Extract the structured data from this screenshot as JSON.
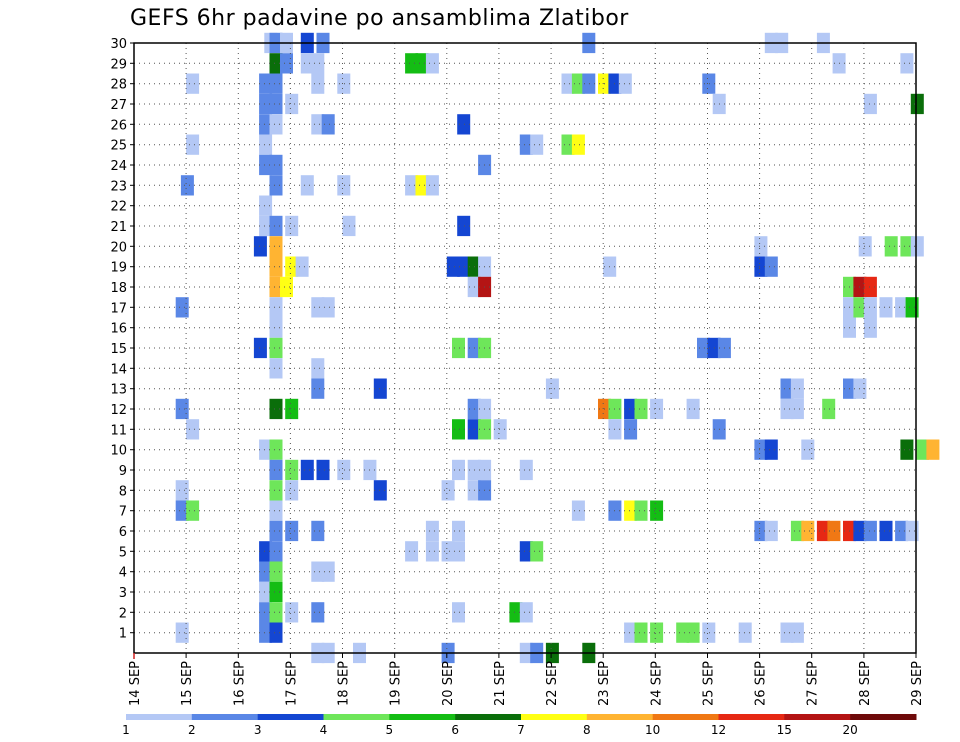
{
  "chart_data": {
    "type": "heatmap",
    "title": "GEFS 6hr padavine po ansamblima Zlatibor",
    "xlabel": "",
    "ylabel": "",
    "x_start_day": 14,
    "x_end_day": 29,
    "x_tick_labels": [
      "14 SEP",
      "15 SEP",
      "16 SEP",
      "17 SEP",
      "18 SEP",
      "19 SEP",
      "20 SEP",
      "21 SEP",
      "22 SEP",
      "23 SEP",
      "24 SEP",
      "25 SEP",
      "26 SEP",
      "27 SEP",
      "28 SEP",
      "29 SEP"
    ],
    "y_tick_labels": [
      "1",
      "2",
      "3",
      "4",
      "5",
      "6",
      "7",
      "8",
      "9",
      "10",
      "11",
      "12",
      "13",
      "14",
      "15",
      "16",
      "17",
      "18",
      "19",
      "20",
      "21",
      "22",
      "23",
      "24",
      "25",
      "26",
      "27",
      "28",
      "29",
      "30"
    ],
    "ylim": [
      1,
      30
    ],
    "grid": true,
    "legend": {
      "placement": "bottom",
      "colors": [
        "#b4c8f5",
        "#5a87e6",
        "#1446d2",
        "#6ee65a",
        "#14bd14",
        "#0a6e0a",
        "#ffff14",
        "#ffb432",
        "#f07814",
        "#e62814",
        "#b41414",
        "#6e0a0a"
      ],
      "labels": [
        "1",
        "2",
        "3",
        "4",
        "5",
        "6",
        "7",
        "8",
        "10",
        "12",
        "15",
        "20"
      ]
    },
    "cells": [
      [
        30,
        16.5,
        0
      ],
      [
        30,
        16.6,
        1
      ],
      [
        30,
        16.8,
        0
      ],
      [
        30,
        17.2,
        2
      ],
      [
        30,
        17.5,
        1
      ],
      [
        30,
        22.6,
        1
      ],
      [
        30,
        26.1,
        0
      ],
      [
        30,
        26.3,
        0
      ],
      [
        30,
        27.1,
        0
      ],
      [
        29,
        16.6,
        5
      ],
      [
        29,
        16.8,
        1
      ],
      [
        29,
        17.2,
        0
      ],
      [
        29,
        17.4,
        0
      ],
      [
        29,
        19.2,
        4
      ],
      [
        29,
        19.4,
        4
      ],
      [
        29,
        19.6,
        0
      ],
      [
        29,
        27.4,
        0
      ],
      [
        29,
        28.7,
        0
      ],
      [
        28,
        15.0,
        0
      ],
      [
        28,
        16.4,
        1
      ],
      [
        28,
        16.6,
        1
      ],
      [
        28,
        17.4,
        0
      ],
      [
        28,
        17.9,
        0
      ],
      [
        28,
        22.2,
        0
      ],
      [
        28,
        22.4,
        3
      ],
      [
        28,
        22.6,
        1
      ],
      [
        28,
        22.9,
        6
      ],
      [
        28,
        23.1,
        2
      ],
      [
        28,
        23.3,
        0
      ],
      [
        28,
        24.9,
        1
      ],
      [
        27,
        16.4,
        1
      ],
      [
        27,
        16.6,
        1
      ],
      [
        27,
        16.9,
        0
      ],
      [
        27,
        25.1,
        0
      ],
      [
        27,
        28.0,
        0
      ],
      [
        27,
        28.9,
        5
      ],
      [
        26,
        16.4,
        1
      ],
      [
        26,
        16.6,
        0
      ],
      [
        26,
        17.4,
        0
      ],
      [
        26,
        17.6,
        1
      ],
      [
        26,
        20.2,
        2
      ],
      [
        25,
        15.0,
        0
      ],
      [
        25,
        16.4,
        0
      ],
      [
        25,
        21.4,
        1
      ],
      [
        25,
        21.6,
        0
      ],
      [
        25,
        22.2,
        3
      ],
      [
        25,
        22.4,
        6
      ],
      [
        24,
        16.4,
        1
      ],
      [
        24,
        16.6,
        1
      ],
      [
        24,
        20.6,
        1
      ],
      [
        23,
        14.9,
        1
      ],
      [
        23,
        16.6,
        1
      ],
      [
        23,
        17.2,
        0
      ],
      [
        23,
        17.9,
        0
      ],
      [
        23,
        19.2,
        0
      ],
      [
        23,
        19.4,
        6
      ],
      [
        23,
        19.6,
        0
      ],
      [
        22,
        16.4,
        0
      ],
      [
        21,
        16.4,
        0
      ],
      [
        21,
        16.6,
        1
      ],
      [
        21,
        16.9,
        0
      ],
      [
        21,
        18.0,
        0
      ],
      [
        21,
        20.2,
        2
      ],
      [
        20,
        16.3,
        2
      ],
      [
        20,
        16.6,
        7
      ],
      [
        20,
        25.9,
        0
      ],
      [
        20,
        27.9,
        0
      ],
      [
        20,
        28.4,
        3
      ],
      [
        20,
        28.7,
        3
      ],
      [
        20,
        28.9,
        0
      ],
      [
        19,
        16.6,
        7
      ],
      [
        19,
        16.9,
        6
      ],
      [
        19,
        17.1,
        0
      ],
      [
        19,
        20.0,
        2
      ],
      [
        19,
        20.2,
        2
      ],
      [
        19,
        20.4,
        5
      ],
      [
        19,
        20.6,
        0
      ],
      [
        19,
        23.0,
        0
      ],
      [
        19,
        25.9,
        2
      ],
      [
        19,
        26.1,
        1
      ],
      [
        18,
        16.6,
        7
      ],
      [
        18,
        16.8,
        6
      ],
      [
        18,
        20.4,
        0
      ],
      [
        18,
        20.6,
        10
      ],
      [
        18,
        27.6,
        3
      ],
      [
        18,
        27.8,
        10
      ],
      [
        18,
        28.0,
        9
      ],
      [
        17,
        14.8,
        1
      ],
      [
        17,
        16.6,
        0
      ],
      [
        17,
        17.4,
        0
      ],
      [
        17,
        17.6,
        0
      ],
      [
        17,
        27.6,
        0
      ],
      [
        17,
        27.8,
        3
      ],
      [
        17,
        28.0,
        0
      ],
      [
        17,
        28.3,
        0
      ],
      [
        17,
        28.6,
        0
      ],
      [
        17,
        28.8,
        4
      ],
      [
        16,
        16.6,
        0
      ],
      [
        16,
        27.6,
        0
      ],
      [
        16,
        28.0,
        0
      ],
      [
        15,
        16.3,
        2
      ],
      [
        15,
        16.6,
        3
      ],
      [
        15,
        20.1,
        3
      ],
      [
        15,
        20.4,
        1
      ],
      [
        15,
        20.6,
        3
      ],
      [
        15,
        24.8,
        1
      ],
      [
        15,
        25.0,
        2
      ],
      [
        15,
        25.2,
        1
      ],
      [
        14,
        16.6,
        0
      ],
      [
        14,
        17.4,
        0
      ],
      [
        13,
        17.4,
        1
      ],
      [
        13,
        18.6,
        2
      ],
      [
        13,
        21.9,
        0
      ],
      [
        13,
        26.4,
        1
      ],
      [
        13,
        26.6,
        0
      ],
      [
        13,
        27.6,
        1
      ],
      [
        13,
        27.8,
        0
      ],
      [
        12,
        14.8,
        1
      ],
      [
        12,
        16.6,
        5
      ],
      [
        12,
        16.9,
        4
      ],
      [
        12,
        20.4,
        1
      ],
      [
        12,
        20.6,
        0
      ],
      [
        12,
        22.9,
        8
      ],
      [
        12,
        23.1,
        3
      ],
      [
        12,
        23.4,
        2
      ],
      [
        12,
        23.6,
        3
      ],
      [
        12,
        23.9,
        0
      ],
      [
        12,
        24.6,
        0
      ],
      [
        12,
        26.4,
        0
      ],
      [
        12,
        26.6,
        0
      ],
      [
        12,
        27.2,
        3
      ],
      [
        11,
        15.0,
        0
      ],
      [
        11,
        20.1,
        4
      ],
      [
        11,
        20.4,
        2
      ],
      [
        11,
        20.6,
        3
      ],
      [
        11,
        20.9,
        0
      ],
      [
        11,
        23.1,
        0
      ],
      [
        11,
        23.4,
        1
      ],
      [
        11,
        25.1,
        1
      ],
      [
        10,
        16.4,
        0
      ],
      [
        10,
        16.6,
        3
      ],
      [
        10,
        25.9,
        1
      ],
      [
        10,
        26.1,
        2
      ],
      [
        10,
        26.8,
        0
      ],
      [
        10,
        28.7,
        5
      ],
      [
        10,
        29.0,
        3
      ],
      [
        10,
        29.2,
        7
      ],
      [
        9,
        16.6,
        1
      ],
      [
        9,
        16.9,
        3
      ],
      [
        9,
        17.2,
        2
      ],
      [
        9,
        17.5,
        2
      ],
      [
        9,
        17.9,
        0
      ],
      [
        9,
        18.4,
        0
      ],
      [
        9,
        20.1,
        0
      ],
      [
        9,
        20.4,
        0
      ],
      [
        9,
        20.6,
        0
      ],
      [
        9,
        21.4,
        0
      ],
      [
        8,
        14.8,
        0
      ],
      [
        8,
        16.6,
        3
      ],
      [
        8,
        16.9,
        0
      ],
      [
        8,
        18.6,
        2
      ],
      [
        8,
        19.9,
        0
      ],
      [
        8,
        20.4,
        0
      ],
      [
        8,
        20.6,
        1
      ],
      [
        7,
        14.8,
        1
      ],
      [
        7,
        15.0,
        3
      ],
      [
        7,
        16.6,
        0
      ],
      [
        7,
        22.4,
        0
      ],
      [
        7,
        23.1,
        1
      ],
      [
        7,
        23.4,
        6
      ],
      [
        7,
        23.6,
        3
      ],
      [
        7,
        23.9,
        4
      ],
      [
        6,
        16.6,
        1
      ],
      [
        6,
        16.9,
        1
      ],
      [
        6,
        17.4,
        1
      ],
      [
        6,
        19.6,
        0
      ],
      [
        6,
        20.1,
        0
      ],
      [
        6,
        25.9,
        1
      ],
      [
        6,
        26.1,
        0
      ],
      [
        6,
        26.6,
        3
      ],
      [
        6,
        26.8,
        7
      ],
      [
        6,
        27.1,
        9
      ],
      [
        6,
        27.3,
        8
      ],
      [
        6,
        27.6,
        9
      ],
      [
        6,
        27.8,
        2
      ],
      [
        6,
        28.0,
        1
      ],
      [
        6,
        28.3,
        2
      ],
      [
        6,
        28.6,
        1
      ],
      [
        6,
        28.8,
        0
      ],
      [
        5,
        16.4,
        2
      ],
      [
        5,
        16.6,
        1
      ],
      [
        5,
        19.2,
        0
      ],
      [
        5,
        19.6,
        0
      ],
      [
        5,
        19.9,
        0
      ],
      [
        5,
        20.1,
        0
      ],
      [
        5,
        21.4,
        2
      ],
      [
        5,
        21.6,
        3
      ],
      [
        4,
        16.4,
        1
      ],
      [
        4,
        16.6,
        3
      ],
      [
        4,
        17.4,
        0
      ],
      [
        4,
        17.6,
        0
      ],
      [
        3,
        16.4,
        0
      ],
      [
        3,
        16.6,
        4
      ],
      [
        2,
        16.4,
        1
      ],
      [
        2,
        16.6,
        3
      ],
      [
        2,
        16.9,
        0
      ],
      [
        2,
        17.4,
        1
      ],
      [
        2,
        20.1,
        0
      ],
      [
        2,
        21.2,
        4
      ],
      [
        2,
        21.4,
        0
      ],
      [
        1,
        14.8,
        0
      ],
      [
        1,
        16.4,
        1
      ],
      [
        1,
        16.6,
        2
      ],
      [
        1,
        23.4,
        0
      ],
      [
        1,
        23.6,
        3
      ],
      [
        1,
        23.9,
        3
      ],
      [
        1,
        24.4,
        3
      ],
      [
        1,
        24.6,
        3
      ],
      [
        1,
        24.9,
        0
      ],
      [
        1,
        25.6,
        0
      ],
      [
        1,
        26.4,
        0
      ],
      [
        1,
        26.6,
        0
      ],
      [
        0,
        17.4,
        0
      ],
      [
        0,
        17.6,
        0
      ],
      [
        0,
        18.2,
        0
      ],
      [
        0,
        19.9,
        1
      ],
      [
        0,
        21.4,
        0
      ],
      [
        0,
        21.6,
        1
      ],
      [
        0,
        21.9,
        5
      ],
      [
        0,
        22.6,
        5
      ]
    ]
  }
}
